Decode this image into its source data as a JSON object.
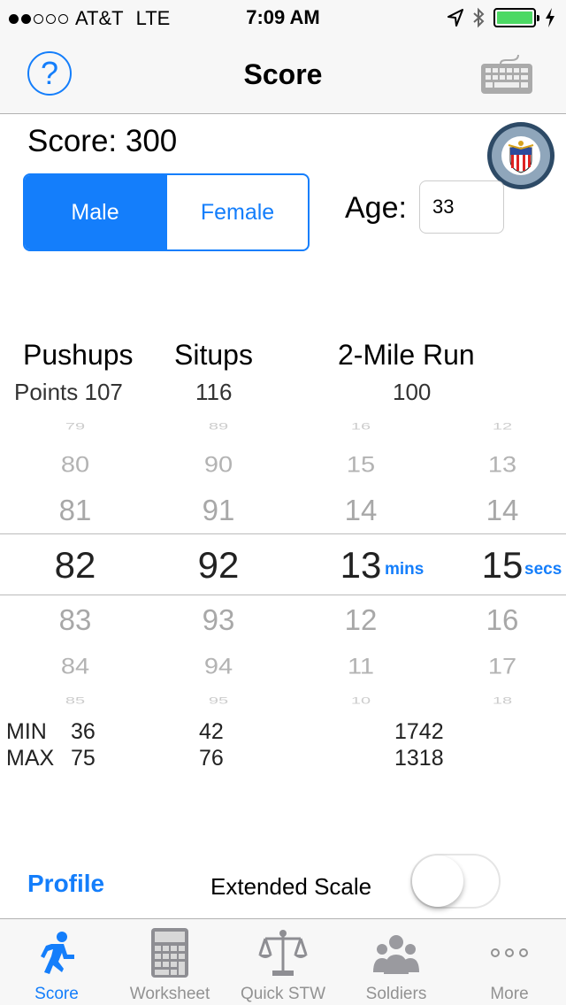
{
  "status_bar": {
    "carrier": "AT&T",
    "network": "LTE",
    "time": "7:09 AM",
    "signal_bars": 2,
    "battery_color": "#4cd964"
  },
  "nav": {
    "title": "Score",
    "help_icon": "?",
    "keyboard_icon": "keyboard-icon"
  },
  "score": {
    "label": "Score: 300"
  },
  "gender": {
    "options": [
      "Male",
      "Female"
    ],
    "selected": "Male"
  },
  "age": {
    "label": "Age:",
    "value": "33"
  },
  "columns": {
    "pushups": "Pushups",
    "situps": "Situps",
    "run": "2-Mile Run"
  },
  "points": {
    "label": "Points",
    "pushups": "107",
    "situps": "116",
    "run": "100"
  },
  "pickers": {
    "pushups": {
      "values": [
        "79",
        "80",
        "81",
        "82",
        "83",
        "84",
        "85"
      ],
      "selected": "82"
    },
    "situps": {
      "values": [
        "89",
        "90",
        "91",
        "92",
        "93",
        "94",
        "95"
      ],
      "selected": "92"
    },
    "run_mins": {
      "values": [
        "16",
        "15",
        "14",
        "13",
        "12",
        "11",
        "10"
      ],
      "selected": "13",
      "unit": "mins"
    },
    "run_secs": {
      "values": [
        "12",
        "13",
        "14",
        "15",
        "16",
        "17",
        "18"
      ],
      "selected": "15",
      "unit": "secs"
    }
  },
  "minmax": {
    "min_label": "MIN",
    "max_label": "MAX",
    "pushups_min": "36",
    "pushups_max": "75",
    "situps_min": "42",
    "situps_max": "76",
    "run_min": "1742",
    "run_max": "1318"
  },
  "bottom": {
    "profile": "Profile",
    "extended_scale": "Extended Scale",
    "extended_scale_on": false
  },
  "tabs": [
    {
      "label": "Score",
      "icon": "runner-icon",
      "active": true
    },
    {
      "label": "Worksheet",
      "icon": "calculator-icon",
      "active": false
    },
    {
      "label": "Quick STW",
      "icon": "scales-icon",
      "active": false
    },
    {
      "label": "Soldiers",
      "icon": "soldiers-icon",
      "active": false
    },
    {
      "label": "More",
      "icon": "more-icon",
      "active": false
    }
  ],
  "colors": {
    "accent": "#147efb",
    "bar_bg": "#f7f7f7"
  }
}
